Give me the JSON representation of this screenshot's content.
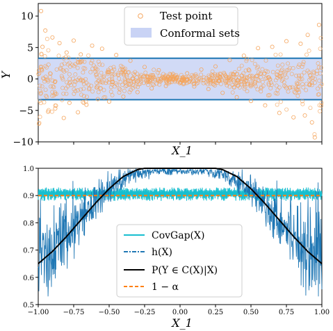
{
  "chart_data": [
    {
      "type": "scatter",
      "xlabel": "X_1",
      "ylabel": "Y",
      "ylim": [
        -10,
        12
      ],
      "xlim": [
        -1,
        1
      ],
      "yticks": [
        -10,
        -5,
        0,
        5,
        10
      ],
      "ytick_labels": [
        "−10",
        "−5",
        "0",
        "5",
        "10"
      ],
      "conformal_band": [
        -3.3,
        3.3
      ],
      "legend": {
        "placement": "top-center",
        "entries": [
          "Test point",
          "Conformal sets"
        ]
      },
      "colors": {
        "points": "#f5a55c",
        "band_fill": "#c9d3f5",
        "band_edge": "#1f77b4"
      },
      "series": [
        {
          "name": "Test point",
          "points": [
            [
              -0.98,
              10.8
            ],
            [
              -0.97,
              5.1
            ],
            [
              -0.95,
              7.7
            ],
            [
              -0.93,
              -5.2
            ],
            [
              -0.9,
              6.6
            ],
            [
              -0.88,
              -4.7
            ],
            [
              -0.85,
              5.7
            ],
            [
              -0.82,
              -6.2
            ],
            [
              -0.8,
              4.2
            ],
            [
              -0.78,
              -3.8
            ],
            [
              -0.75,
              6.1
            ],
            [
              -0.72,
              -5.3
            ],
            [
              -0.7,
              3.9
            ],
            [
              -0.66,
              -4.1
            ],
            [
              -0.62,
              5.3
            ],
            [
              -0.58,
              -3.2
            ],
            [
              -0.55,
              4.8
            ],
            [
              -0.5,
              -3.6
            ],
            [
              -0.45,
              3.8
            ],
            [
              -0.4,
              -2.8
            ],
            [
              -0.35,
              2.9
            ],
            [
              -0.3,
              -2.1
            ],
            [
              -0.25,
              1.9
            ],
            [
              -0.2,
              -1.5
            ],
            [
              -0.15,
              1.4
            ],
            [
              -0.1,
              -1.1
            ],
            [
              -0.05,
              0.8
            ],
            [
              0,
              -0.5
            ],
            [
              0.05,
              0.9
            ],
            [
              0.1,
              -1.2
            ],
            [
              0.15,
              1.5
            ],
            [
              0.2,
              -1.6
            ],
            [
              0.25,
              2.0
            ],
            [
              0.3,
              -2.2
            ],
            [
              0.35,
              3.0
            ],
            [
              0.4,
              -2.9
            ],
            [
              0.45,
              3.7
            ],
            [
              0.5,
              -3.5
            ],
            [
              0.55,
              4.9
            ],
            [
              0.6,
              -4.2
            ],
            [
              0.65,
              5.1
            ],
            [
              0.7,
              -5.4
            ],
            [
              0.75,
              6.0
            ],
            [
              0.8,
              -6.1
            ],
            [
              0.85,
              5.6
            ],
            [
              0.88,
              -5.8
            ],
            [
              0.9,
              7.0
            ],
            [
              0.93,
              -6.9
            ],
            [
              0.95,
              -9.3
            ],
            [
              0.98,
              8.6
            ]
          ]
        }
      ]
    },
    {
      "type": "line",
      "xlabel": "X_1",
      "ylabel": "",
      "xlim": [
        -1,
        1
      ],
      "ylim": [
        0.5,
        1.0
      ],
      "xticks": [
        -1.0,
        -0.75,
        -0.5,
        -0.25,
        0.0,
        0.25,
        0.5,
        0.75,
        1.0
      ],
      "xtick_labels": [
        "−1.00",
        "−0.75",
        "−0.50",
        "−0.25",
        "0.00",
        "0.25",
        "0.50",
        "0.75",
        "1.00"
      ],
      "yticks": [
        0.5,
        0.6,
        0.7,
        0.8,
        0.9,
        1.0
      ],
      "ytick_labels": [
        "0.5",
        "0.6",
        "0.7",
        "0.8",
        "0.9",
        "1.0"
      ],
      "legend": {
        "placement": "bottom-center",
        "entries": [
          "CovGap(X)",
          "h(X)",
          "P(Y ∈ C(X)|X)",
          "1 − α"
        ]
      },
      "colors": {
        "covgap": "#17becf",
        "h": "#1f77b4",
        "prob": "#000000",
        "alpha": "#ff7f0e"
      },
      "alpha_level": 0.9,
      "covgap_band": [
        0.88,
        0.93
      ],
      "series": [
        {
          "name": "P(Y ∈ C(X)|X)",
          "x": [
            -1.0,
            -0.9,
            -0.8,
            -0.7,
            -0.6,
            -0.5,
            -0.4,
            -0.3,
            -0.25,
            -0.2,
            -0.1,
            0.0,
            0.1,
            0.2,
            0.25,
            0.3,
            0.4,
            0.5,
            0.6,
            0.7,
            0.8,
            0.9,
            1.0
          ],
          "values": [
            0.65,
            0.695,
            0.75,
            0.81,
            0.87,
            0.925,
            0.97,
            0.995,
            1.0,
            1.0,
            1.0,
            1.0,
            1.0,
            1.0,
            1.0,
            0.995,
            0.97,
            0.925,
            0.87,
            0.81,
            0.75,
            0.695,
            0.65
          ]
        },
        {
          "name": "h(X)",
          "x": [
            -1.0,
            -0.9,
            -0.8,
            -0.7,
            -0.6,
            -0.5,
            -0.4,
            -0.3,
            -0.2,
            -0.1,
            0.0,
            0.1,
            0.2,
            0.3,
            0.4,
            0.5,
            0.6,
            0.7,
            0.8,
            0.9,
            1.0
          ],
          "values": [
            0.69,
            0.71,
            0.76,
            0.81,
            0.87,
            0.92,
            0.96,
            0.98,
            0.99,
            0.99,
            0.99,
            0.99,
            0.99,
            0.98,
            0.96,
            0.92,
            0.87,
            0.81,
            0.76,
            0.71,
            0.69
          ]
        },
        {
          "name": "1 − α",
          "x": [
            -1.0,
            1.0
          ],
          "values": [
            0.9,
            0.9
          ]
        }
      ]
    }
  ]
}
